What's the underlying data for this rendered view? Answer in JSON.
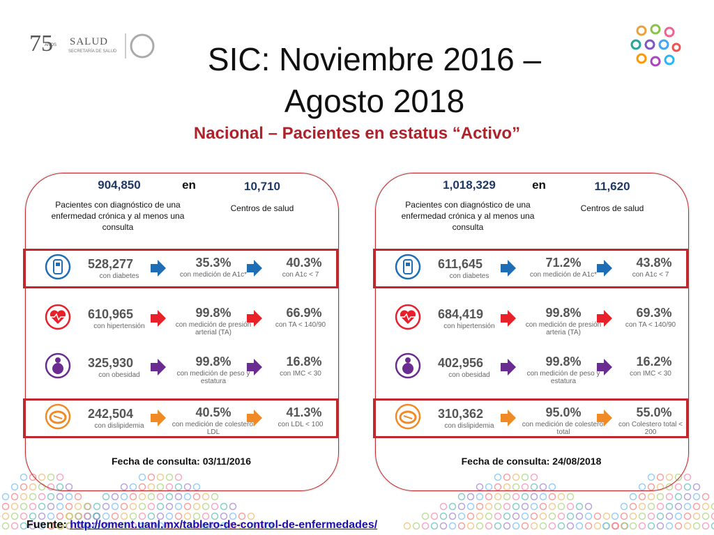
{
  "header": {
    "logo_number": "75",
    "logo_years": "AÑOS",
    "ministry": "SALUD",
    "ministry_sub": "SECRETARÍA DE SALUD",
    "title_line1": "SIC: Noviembre 2016 –",
    "title_line2": "Agosto 2018",
    "subtitle": "Nacional – Pacientes en estatus “Activo”"
  },
  "panels": [
    {
      "patients": "904,850",
      "connector": "en",
      "centers": "10,710",
      "patients_label": "Pacientes con diagnóstico de una enfermedad crónica y al menos una consulta",
      "centers_label": "Centros de salud",
      "rows": [
        {
          "count": "528,277",
          "count_label": "con diabetes",
          "measured": "35.3%",
          "measured_label": "con medición de A1c*",
          "control": "40.3%",
          "control_label": "con A1c < 7",
          "highlight": true
        },
        {
          "count": "610,965",
          "count_label": "con hipertensión",
          "measured": "99.8%",
          "measured_label": "con medición de presión arterial (TA)",
          "control": "66.9%",
          "control_label": "con TA < 140/90",
          "highlight": false
        },
        {
          "count": "325,930",
          "count_label": "con obesidad",
          "measured": "99.8%",
          "measured_label": "con medición de peso y estatura",
          "control": "16.8%",
          "control_label": "con IMC < 30",
          "highlight": false
        },
        {
          "count": "242,504",
          "count_label": "con dislipidemia",
          "measured": "40.5%",
          "measured_label": "con medición de colesterol LDL",
          "control": "41.3%",
          "control_label": "con LDL < 100",
          "highlight": true
        }
      ],
      "date": "Fecha de consulta: 03/11/2016"
    },
    {
      "patients": "1,018,329",
      "connector": "en",
      "centers": "11,620",
      "patients_label": "Pacientes con diagnóstico de una enfermedad crónica y al menos una consulta",
      "centers_label": "Centros de salud",
      "rows": [
        {
          "count": "611,645",
          "count_label": "con diabetes",
          "measured": "71.2%",
          "measured_label": "con medición de A1c*",
          "control": "43.8%",
          "control_label": "con A1c < 7",
          "highlight": true
        },
        {
          "count": "684,419",
          "count_label": "con hipertensión",
          "measured": "99.8%",
          "measured_label": "con medición de presión arteria (TA)",
          "control": "69.3%",
          "control_label": "con TA < 140/90",
          "highlight": false
        },
        {
          "count": "402,956",
          "count_label": "con obesidad",
          "measured": "99.8%",
          "measured_label": "con medición de peso y estatura",
          "control": "16.2%",
          "control_label": "con IMC < 30",
          "highlight": false
        },
        {
          "count": "310,362",
          "count_label": "con dislipidemia",
          "measured": "95.0%",
          "measured_label": "con medición de colesterol total",
          "control": "55.0%",
          "control_label": "con Colestero total < 200",
          "highlight": true
        }
      ],
      "date": "Fecha de consulta: 24/08/2018"
    }
  ],
  "footer": {
    "prefix": "Fuente:",
    "link": "http://oment.uanl.mx/tablero-de-control-de-enfermedades/"
  }
}
